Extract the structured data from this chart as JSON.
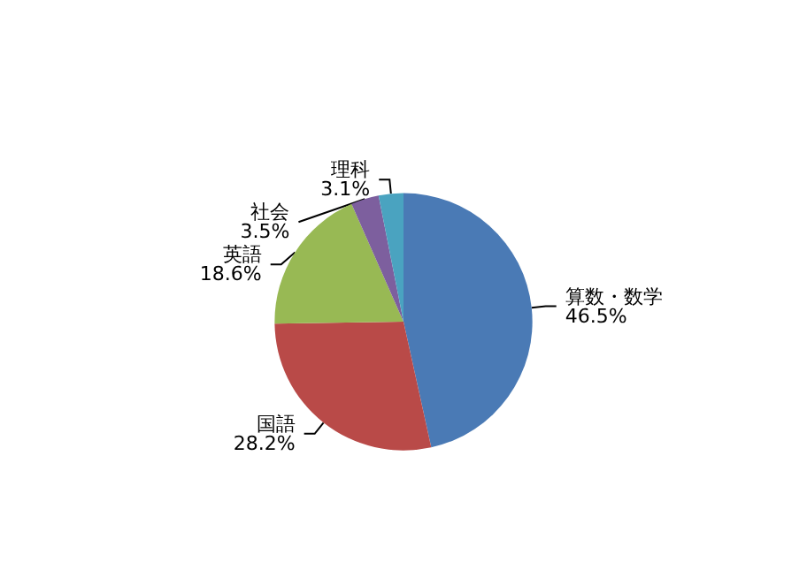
{
  "chart_data": {
    "type": "pie",
    "categories": [
      "算数・数学",
      "国語",
      "英語",
      "社会",
      "理科"
    ],
    "values": [
      46.5,
      28.2,
      18.6,
      3.5,
      3.1
    ],
    "value_labels": [
      "46.5%",
      "28.2%",
      "18.6%",
      "3.5%",
      "3.1%"
    ],
    "colors": [
      "#4a7ab5",
      "#b94a48",
      "#98b954",
      "#7d5f9e",
      "#4aa3c0"
    ],
    "legend": false
  }
}
